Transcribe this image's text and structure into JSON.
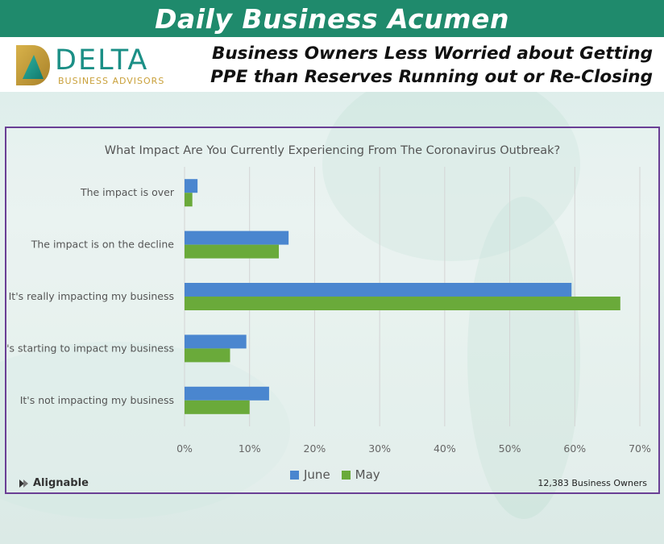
{
  "banner": {
    "title": "Daily Business Acumen"
  },
  "logo": {
    "word": "DELTA",
    "sub": "BUSINESS ADVISORS"
  },
  "headline": {
    "line1": "Business Owners Less Worried about Getting",
    "line2": "PPE than Reserves Running out or Re-Closing"
  },
  "source": {
    "name": "Alignable",
    "icon": "alignable-logo-icon"
  },
  "footnote": "12,383 Business Owners",
  "colors": {
    "june": "#4a86cf",
    "may": "#6aaa3a",
    "frame": "#6a3f95",
    "banner": "#1f8a6c"
  },
  "chart_data": {
    "type": "bar",
    "orientation": "horizontal",
    "title": "What Impact Are You Currently Experiencing From The Coronavirus Outbreak?",
    "categories": [
      "The impact is over",
      "The impact is on the decline",
      "It's really impacting my business",
      "It's starting to impact my business",
      "It's not impacting my business"
    ],
    "series": [
      {
        "name": "June",
        "color": "#4a86cf",
        "values": [
          2,
          16,
          59.5,
          9.5,
          13
        ]
      },
      {
        "name": "May",
        "color": "#6aaa3a",
        "values": [
          1.2,
          14.5,
          67,
          7,
          10
        ]
      }
    ],
    "xlim": [
      0,
      70
    ],
    "ticks": [
      "0%",
      "10%",
      "20%",
      "30%",
      "40%",
      "50%",
      "60%",
      "70%"
    ],
    "grid": true,
    "legend": "bottom"
  }
}
